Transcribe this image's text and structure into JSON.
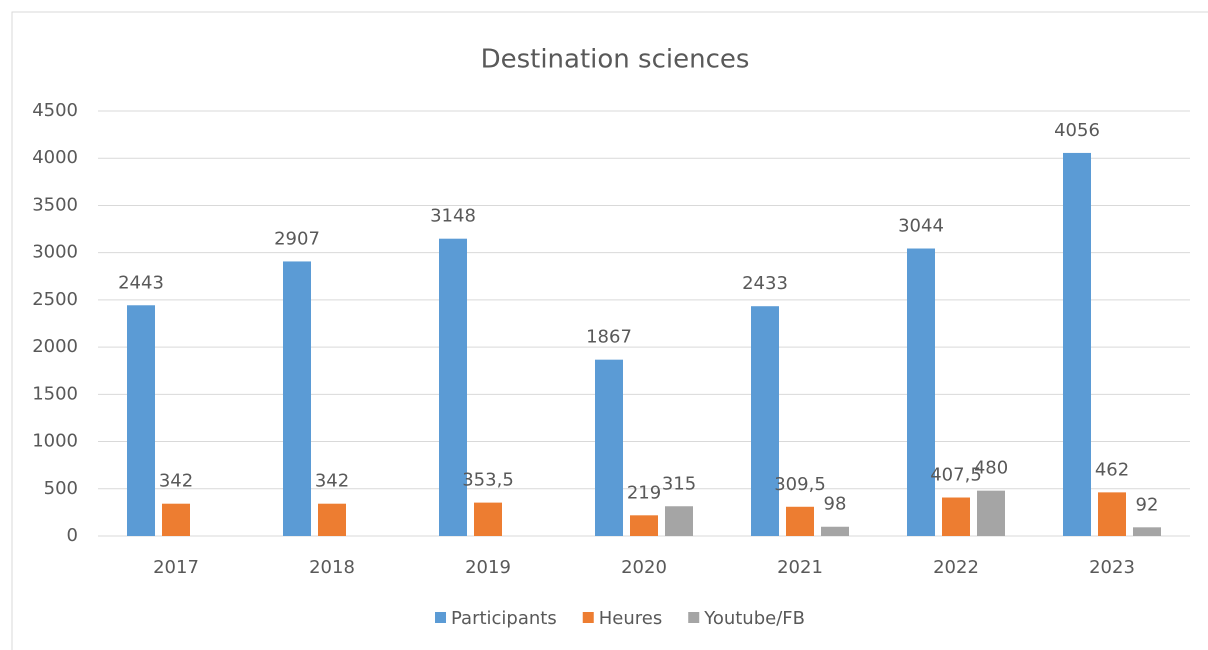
{
  "chart_data": {
    "type": "bar",
    "title": "Destination sciences",
    "categories": [
      "2017",
      "2018",
      "2019",
      "2020",
      "2021",
      "2022",
      "2023"
    ],
    "series": [
      {
        "name": "Participants",
        "color": "#5b9bd5",
        "values": [
          2443,
          2907,
          3148,
          1867,
          2433,
          3044,
          4056
        ]
      },
      {
        "name": "Heures",
        "color": "#ed7d31",
        "values": [
          342,
          342,
          353.5,
          219,
          309.5,
          407.5,
          462
        ],
        "value_labels": [
          "342",
          "342",
          "353,5",
          "219",
          "309,5",
          "407,5",
          "462"
        ]
      },
      {
        "name": "Youtube/FB",
        "color": "#a5a5a5",
        "values": [
          null,
          null,
          null,
          315,
          98,
          480,
          92
        ]
      }
    ],
    "ylim": [
      0,
      4500
    ],
    "yticks": [
      0,
      500,
      1000,
      1500,
      2000,
      2500,
      3000,
      3500,
      4000,
      4500
    ],
    "grid": true,
    "legend": "bottom"
  }
}
